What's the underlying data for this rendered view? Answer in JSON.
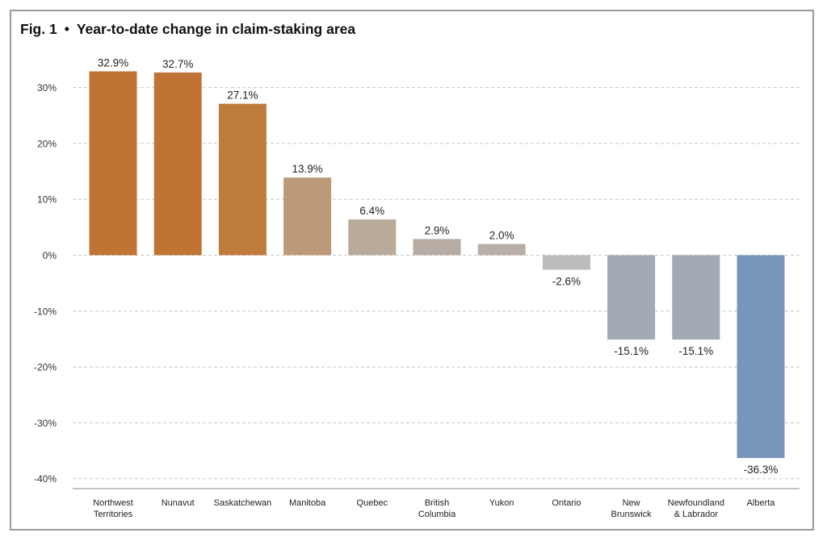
{
  "chart_data": {
    "type": "bar",
    "fig_label": "Fig. 1",
    "separator": "•",
    "title": "Year-to-date change in claim-staking area",
    "xlabel": "",
    "ylabel": "",
    "ylim": [
      -40,
      33
    ],
    "yticks": [
      30,
      20,
      10,
      0,
      -10,
      -20,
      -30,
      -40
    ],
    "ytick_labels": [
      "30%",
      "20%",
      "10%",
      "0%",
      "-10%",
      "-20%",
      "-30%",
      "-40%"
    ],
    "grid": true,
    "legend": "none",
    "categories": [
      [
        "Northwest",
        "Territories"
      ],
      [
        "Nunavut"
      ],
      [
        "Saskatchewan"
      ],
      [
        "Manitoba"
      ],
      [
        "Quebec"
      ],
      [
        "British",
        "Columbia"
      ],
      [
        "Yukon"
      ],
      [
        "Ontario"
      ],
      [
        "New",
        "Brunswick"
      ],
      [
        "Newfoundland",
        "& Labrador"
      ],
      [
        "Alberta"
      ]
    ],
    "values": [
      32.9,
      32.7,
      27.1,
      13.9,
      6.4,
      2.9,
      2.0,
      -2.6,
      -15.1,
      -15.1,
      -36.3
    ],
    "value_labels": [
      "32.9%",
      "32.7%",
      "27.1%",
      "13.9%",
      "6.4%",
      "2.9%",
      "2.0%",
      "-2.6%",
      "-15.1%",
      "-15.1%",
      "-36.3%"
    ],
    "colors": [
      "#bf7335",
      "#bf7335",
      "#bf7b3c",
      "#bc9a77",
      "#b9ab99",
      "#b7aca4",
      "#b9aea6",
      "#bbbbbb",
      "#a2aab3",
      "#a2aab3",
      "#7796b9"
    ],
    "grid_color": "#c8c8c8",
    "axis_color": "#888888"
  }
}
